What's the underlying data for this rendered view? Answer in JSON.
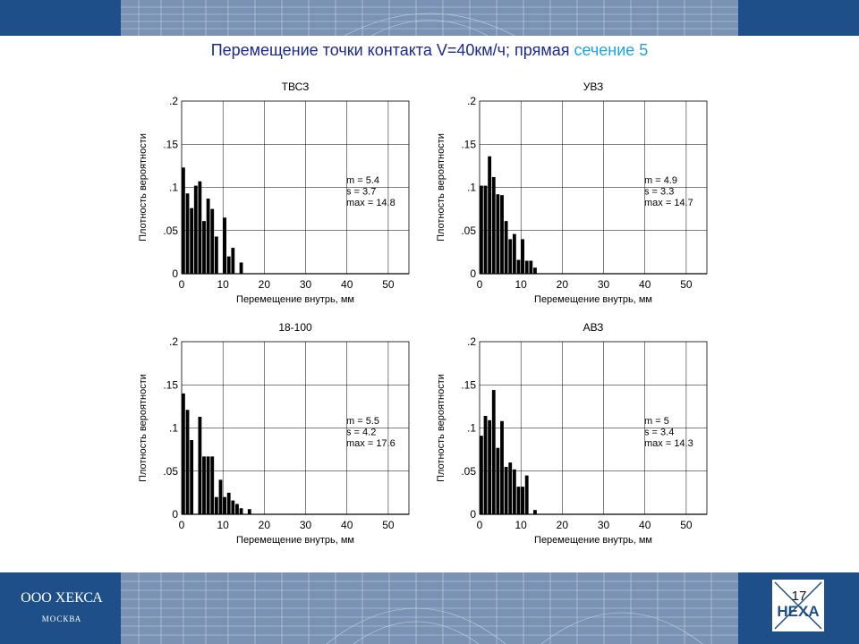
{
  "slide": {
    "title_main": "Перемещение точки контакта  V=40км/ч; прямая ",
    "title_accent": "сечение 5",
    "company_name": "ООО ХЕКСА",
    "company_city": "МОСКВА",
    "logo_text": "HEXA",
    "page_number": "17"
  },
  "colors": {
    "band": "#1f4f88",
    "title": "#1c2a8a",
    "accent": "#1fa3e0",
    "bars": "#000000"
  },
  "chart_data": [
    {
      "type": "bar",
      "title": "ТВСЗ",
      "xlabel": "Перемещение внутрь, мм",
      "ylabel": "Плотность вероятности",
      "xlim": [
        0,
        55
      ],
      "ylim": [
        0,
        0.2
      ],
      "xticks": [
        0,
        10,
        20,
        30,
        40,
        50
      ],
      "yticks": [
        0,
        0.05,
        0.1,
        0.15,
        0.2
      ],
      "grid": true,
      "bin_width": 1,
      "x": [
        1,
        2,
        3,
        4,
        5,
        6,
        7,
        8,
        9,
        10,
        11,
        12,
        13,
        14,
        15
      ],
      "values": [
        0.123,
        0.093,
        0.076,
        0.102,
        0.107,
        0.061,
        0.087,
        0.075,
        0.043,
        0.0,
        0.065,
        0.02,
        0.03,
        0.0,
        0.013
      ],
      "stats": [
        "m = 5.4",
        "s  = 3.7",
        "max  = 14.8"
      ]
    },
    {
      "type": "bar",
      "title": "УВЗ",
      "xlabel": "Перемещение внутрь, мм",
      "ylabel": "Плотность вероятности",
      "xlim": [
        0,
        55
      ],
      "ylim": [
        0,
        0.2
      ],
      "xticks": [
        0,
        10,
        20,
        30,
        40,
        50
      ],
      "yticks": [
        0,
        0.05,
        0.1,
        0.15,
        0.2
      ],
      "grid": true,
      "bin_width": 1,
      "x": [
        1,
        2,
        3,
        4,
        5,
        6,
        7,
        8,
        9,
        10,
        11,
        12,
        13,
        14,
        15
      ],
      "values": [
        0.102,
        0.102,
        0.136,
        0.112,
        0.092,
        0.091,
        0.061,
        0.04,
        0.046,
        0.016,
        0.04,
        0.015,
        0.015,
        0.007,
        0.0
      ],
      "stats": [
        "m = 4.9",
        "s  = 3.3",
        "max  = 14.7"
      ]
    },
    {
      "type": "bar",
      "title": "18-100",
      "xlabel": "Перемещение внутрь, мм",
      "ylabel": "Плотность вероятности",
      "xlim": [
        0,
        55
      ],
      "ylim": [
        0,
        0.2
      ],
      "xticks": [
        0,
        10,
        20,
        30,
        40,
        50
      ],
      "yticks": [
        0,
        0.05,
        0.1,
        0.15,
        0.2
      ],
      "grid": true,
      "bin_width": 1,
      "x": [
        1,
        2,
        3,
        4,
        5,
        6,
        7,
        8,
        9,
        10,
        11,
        12,
        13,
        14,
        15,
        16,
        17,
        18
      ],
      "values": [
        0.14,
        0.121,
        0.086,
        0.0,
        0.113,
        0.067,
        0.067,
        0.067,
        0.02,
        0.04,
        0.02,
        0.025,
        0.016,
        0.012,
        0.007,
        0.0,
        0.006,
        0.0
      ],
      "stats": [
        "m = 5.5",
        "s  = 4.2",
        "max  = 17.6"
      ]
    },
    {
      "type": "bar",
      "title": "АВЗ",
      "xlabel": "Перемещение внутрь, мм",
      "ylabel": "Плотность вероятности",
      "xlim": [
        0,
        55
      ],
      "ylim": [
        0,
        0.2
      ],
      "xticks": [
        0,
        10,
        20,
        30,
        40,
        50
      ],
      "yticks": [
        0,
        0.05,
        0.1,
        0.15,
        0.2
      ],
      "grid": true,
      "bin_width": 1,
      "x": [
        1,
        2,
        3,
        4,
        5,
        6,
        7,
        8,
        9,
        10,
        11,
        12,
        13,
        14
      ],
      "values": [
        0.091,
        0.114,
        0.109,
        0.144,
        0.077,
        0.108,
        0.055,
        0.06,
        0.052,
        0.032,
        0.032,
        0.045,
        0.0,
        0.005
      ],
      "stats": [
        "m = 5",
        "s  = 3.4",
        "max  = 14.3"
      ]
    }
  ]
}
